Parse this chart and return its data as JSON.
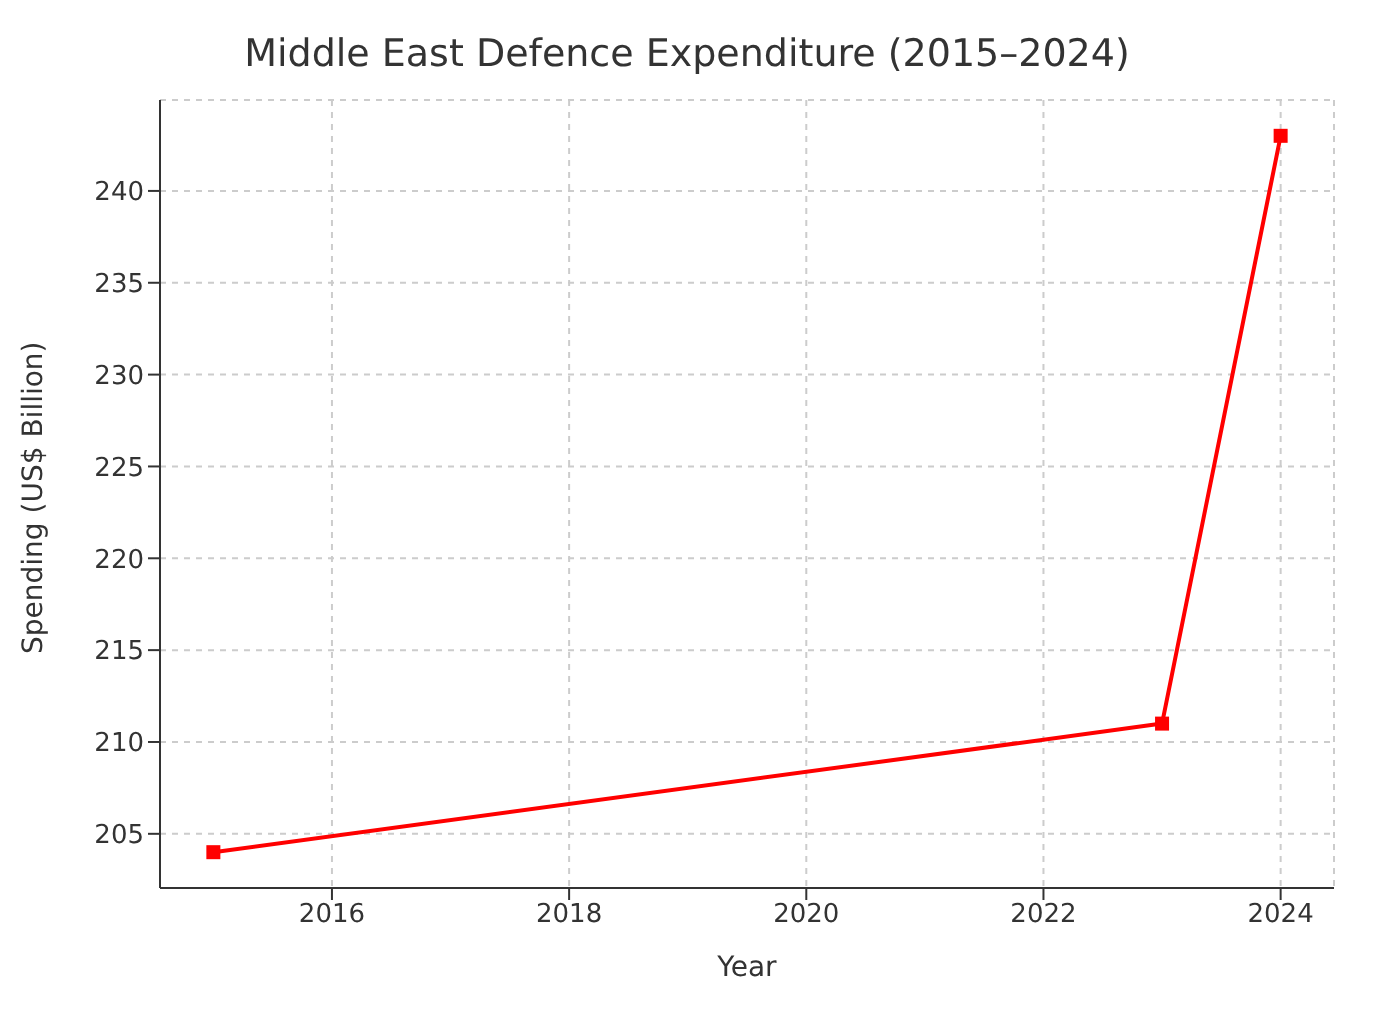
{
  "chart_data": {
    "type": "line",
    "title": "Middle East Defence Expenditure (2015–2024)",
    "xlabel": "Year",
    "ylabel": "Spending (US$ Billion)",
    "x": [
      2015,
      2023,
      2024
    ],
    "series": [
      {
        "color": "#ff0000",
        "values": [
          204,
          211,
          243
        ]
      }
    ],
    "xlim": [
      2014.55,
      2024.45
    ],
    "xticks": [
      2016,
      2018,
      2020,
      2022,
      2024
    ],
    "ylim": [
      202.05,
      244.95
    ],
    "yticks": [
      205,
      210,
      215,
      220,
      225,
      230,
      235,
      240
    ],
    "grid": true,
    "marker": "square",
    "line_style": "solid"
  }
}
